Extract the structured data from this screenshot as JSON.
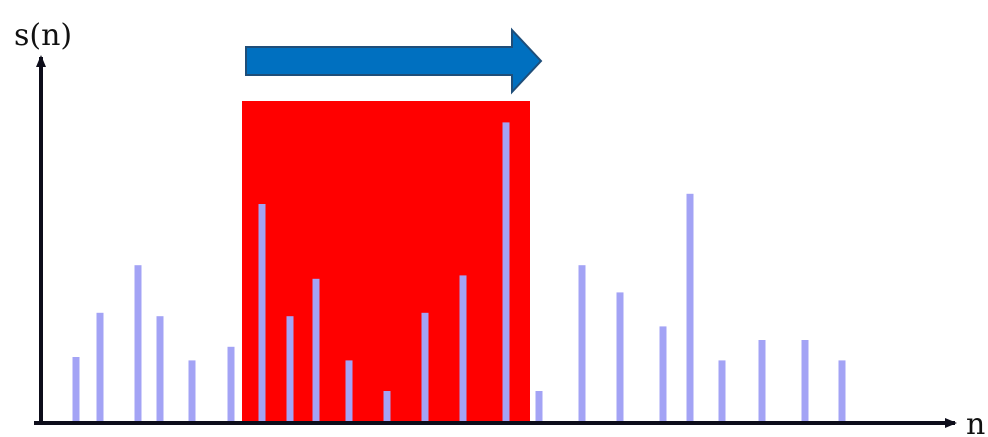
{
  "labels": {
    "y_axis": "s(n)",
    "x_axis": "n"
  },
  "colors": {
    "axis": "#0d0d1a",
    "sample": "#a3a3f5",
    "window": "#ff0000",
    "arrow_fill": "#0070c0",
    "arrow_stroke": "#1f4e79"
  },
  "window_arrow": {
    "direction": "right"
  },
  "chart_data": {
    "type": "bar",
    "xlabel": "n",
    "ylabel": "s(n)",
    "values": [
      20,
      33,
      47,
      32,
      19,
      23,
      65,
      32,
      43,
      19,
      10,
      33,
      44,
      89,
      10,
      47,
      39,
      29,
      68,
      19,
      25,
      25,
      19
    ],
    "window": {
      "start_index": 5,
      "end_index": 13,
      "highlight": "red",
      "moves": "right"
    }
  }
}
